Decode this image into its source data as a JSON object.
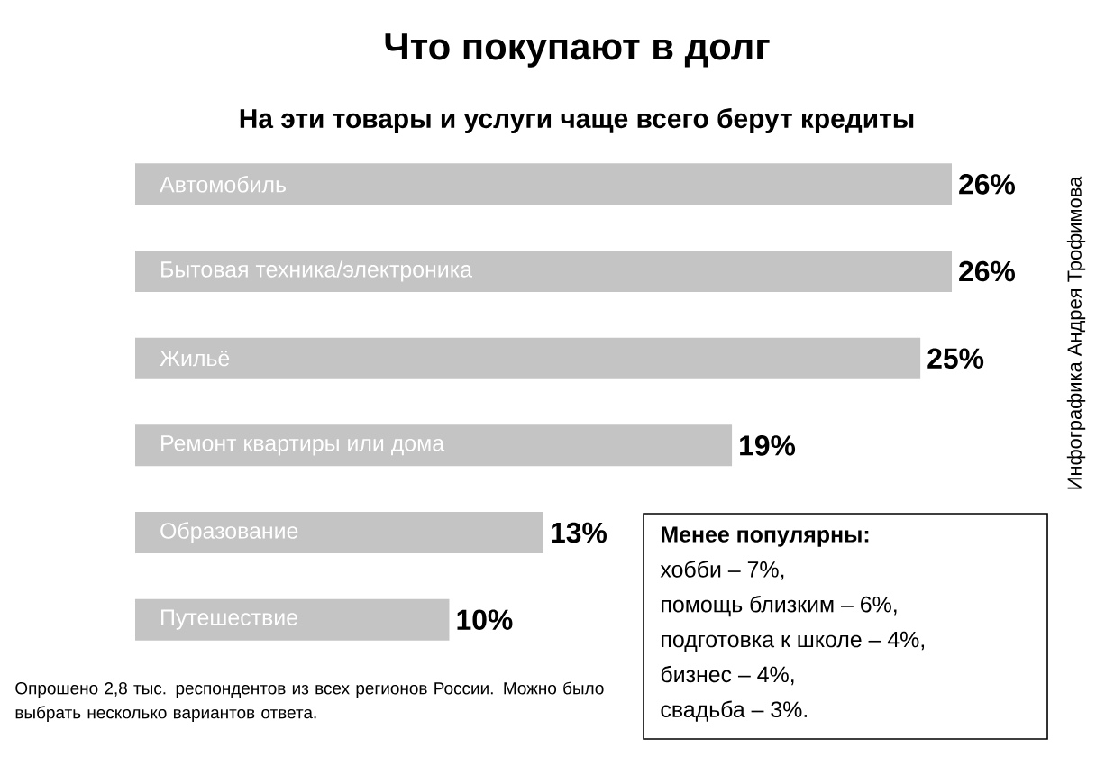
{
  "chart_data": {
    "type": "bar",
    "orientation": "horizontal",
    "title": "Что покупают в долг",
    "subtitle": "На эти товары и услуги чаще всего берут кредиты",
    "categories": [
      "Автомобиль",
      "Бытовая техника/электроника",
      "Жильё",
      "Ремонт квартиры или дома",
      "Образование",
      "Путешествие"
    ],
    "values": [
      26,
      26,
      25,
      19,
      13,
      10
    ],
    "value_labels": [
      "26%",
      "26%",
      "25%",
      "19%",
      "13%",
      "10%"
    ],
    "color": "#c4c4c4",
    "annotations": [
      "Опрошено 2,8 тыс. респондентов из всех регионов России. Можно было выбрать несколько вариантов ответа.",
      "Инфографика Андрея Трофимова",
      "Менее популярны:",
      "хобби – 7%,",
      "помощь близким – 6%,",
      "подготовка к школе – 4%,",
      "бизнес – 4%,",
      "свадьба – 3%."
    ]
  }
}
